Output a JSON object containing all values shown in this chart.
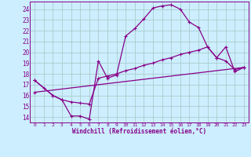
{
  "xlabel": "Windchill (Refroidissement éolien,°C)",
  "background_color": "#cceeff",
  "grid_color": "#aacccc",
  "line_color": "#880088",
  "xlim": [
    -0.5,
    23.5
  ],
  "ylim": [
    13.5,
    24.7
  ],
  "xticks": [
    0,
    1,
    2,
    3,
    4,
    5,
    6,
    7,
    8,
    9,
    10,
    11,
    12,
    13,
    14,
    15,
    16,
    17,
    18,
    19,
    20,
    21,
    22,
    23
  ],
  "yticks": [
    14,
    15,
    16,
    17,
    18,
    19,
    20,
    21,
    22,
    23,
    24
  ],
  "line1_x": [
    0,
    1,
    2,
    3,
    4,
    5,
    6,
    7,
    8,
    9,
    10,
    11,
    12,
    13,
    14,
    15,
    16,
    17,
    18,
    19,
    20,
    21,
    22,
    23
  ],
  "line1_y": [
    17.4,
    16.7,
    16.0,
    15.6,
    14.1,
    14.1,
    13.8,
    19.2,
    17.6,
    17.9,
    21.5,
    22.2,
    23.1,
    24.1,
    24.3,
    24.4,
    24.0,
    22.8,
    22.3,
    20.5,
    19.5,
    20.5,
    18.2,
    18.6
  ],
  "line2_x": [
    0,
    2,
    3,
    4,
    5,
    6,
    7,
    8,
    9,
    10,
    11,
    12,
    13,
    14,
    15,
    16,
    17,
    18,
    19,
    20,
    21,
    22,
    23
  ],
  "line2_y": [
    17.4,
    16.0,
    15.6,
    15.4,
    15.3,
    15.2,
    17.6,
    17.8,
    18.0,
    18.3,
    18.5,
    18.8,
    19.0,
    19.3,
    19.5,
    19.8,
    20.0,
    20.2,
    20.5,
    19.5,
    19.2,
    18.4,
    18.6
  ],
  "line3_x": [
    0,
    23
  ],
  "line3_y": [
    16.3,
    18.6
  ]
}
